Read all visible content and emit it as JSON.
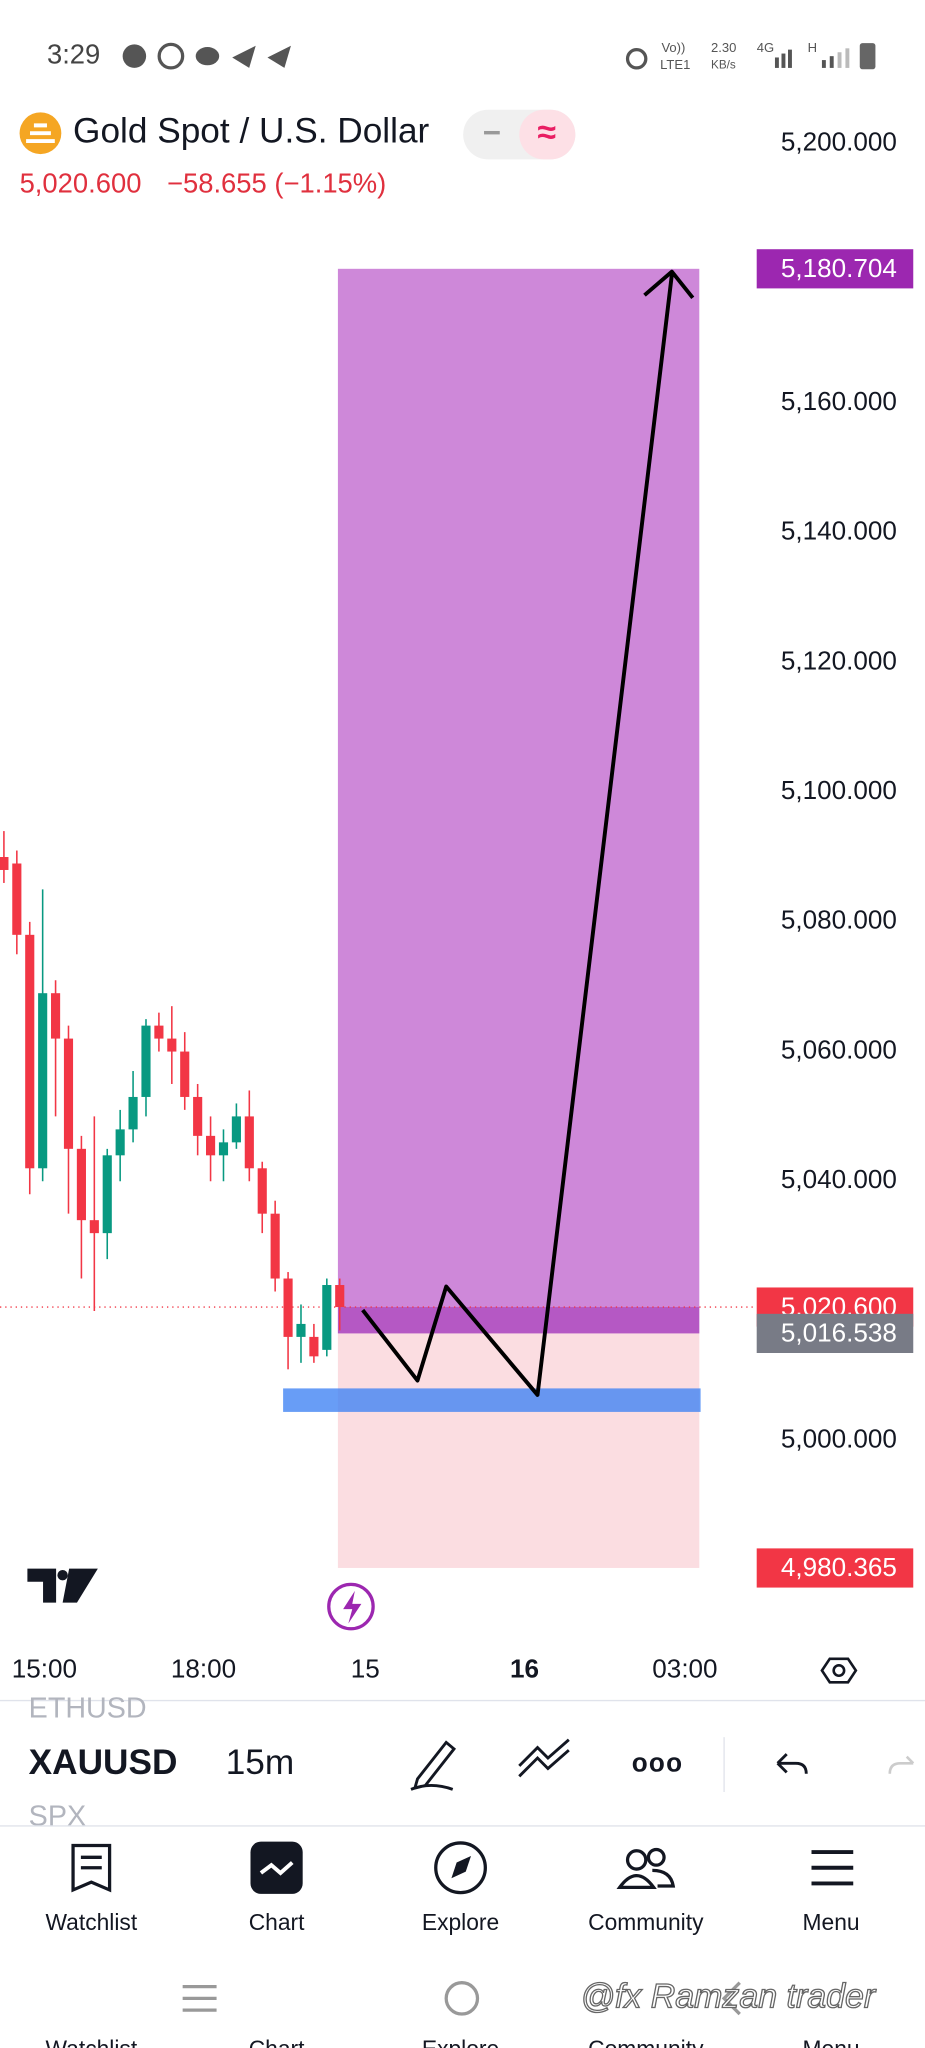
{
  "status_bar": {
    "time": "3:29",
    "network": "Vo))",
    "lte": "LTE1",
    "speed": "2.30",
    "speed_unit": "KB/s",
    "gen": "4G",
    "h": "H"
  },
  "header": {
    "title": "Gold Spot / U.S. Dollar",
    "price": "5,020.600",
    "change": "−58.655 (−1.15%)",
    "toggle_minus": "−",
    "toggle_approx": "≈"
  },
  "chart": {
    "ylim": [
      4972,
      5215
    ],
    "yticks": [
      {
        "value": 5200,
        "label": "5,200.000"
      },
      {
        "value": 5160,
        "label": "5,160.000"
      },
      {
        "value": 5140,
        "label": "5,140.000"
      },
      {
        "value": 5120,
        "label": "5,120.000"
      },
      {
        "value": 5100,
        "label": "5,100.000"
      },
      {
        "value": 5080,
        "label": "5,080.000"
      },
      {
        "value": 5060,
        "label": "5,060.000"
      },
      {
        "value": 5040,
        "label": "5,040.000"
      },
      {
        "value": 5000,
        "label": "5,000.000"
      }
    ],
    "price_levels": [
      {
        "value": 5180.704,
        "label": "5,180.704",
        "color": "#9c27b0"
      },
      {
        "value": 5020.6,
        "label": "5,020.600",
        "color": "#f23645"
      },
      {
        "value": 5016.538,
        "label": "5,016.538",
        "color": "#787b86"
      },
      {
        "value": 4980.365,
        "label": "4,980.365",
        "color": "#f23645"
      }
    ],
    "xticks": [
      "15:00",
      "18:00",
      "15",
      "16",
      "03:00"
    ],
    "up_color": "#089981",
    "down_color": "#f23645",
    "candles": [
      [
        5090,
        5094,
        5086,
        5088
      ],
      [
        5089,
        5091,
        5075,
        5078
      ],
      [
        5078,
        5080,
        5038,
        5042
      ],
      [
        5042,
        5085,
        5040,
        5069
      ],
      [
        5069,
        5071,
        5050,
        5062
      ],
      [
        5062,
        5064,
        5035,
        5045
      ],
      [
        5045,
        5047,
        5025,
        5034
      ],
      [
        5034,
        5050,
        5020,
        5032
      ],
      [
        5032,
        5045,
        5028,
        5044
      ],
      [
        5044,
        5051,
        5040,
        5048
      ],
      [
        5048,
        5057,
        5046,
        5053
      ],
      [
        5053,
        5065,
        5050,
        5064
      ],
      [
        5064,
        5066,
        5060,
        5062
      ],
      [
        5062,
        5067,
        5055,
        5060
      ],
      [
        5060,
        5063,
        5051,
        5053
      ],
      [
        5053,
        5055,
        5044,
        5047
      ],
      [
        5047,
        5050,
        5040,
        5044
      ],
      [
        5044,
        5048,
        5040,
        5046
      ],
      [
        5046,
        5052,
        5045,
        5050
      ],
      [
        5050,
        5054,
        5040,
        5042
      ],
      [
        5042,
        5043,
        5032,
        5035
      ],
      [
        5035,
        5037,
        5023,
        5025
      ],
      [
        5025,
        5026,
        5011,
        5016
      ],
      [
        5016,
        5021,
        5012,
        5018
      ],
      [
        5016,
        5018,
        5012,
        5013
      ],
      [
        5014,
        5025,
        5013,
        5024
      ],
      [
        5024,
        5025,
        5017,
        5020.6
      ]
    ]
  },
  "toolbar": {
    "above": "ETHUSD",
    "symbol": "XAUUSD",
    "interval": "15m",
    "more": "ooo",
    "below": "SPX"
  },
  "nav": [
    "Watchlist",
    "Chart",
    "Explore",
    "Community",
    "Menu"
  ],
  "watermark": "@fx Ramzan trader"
}
